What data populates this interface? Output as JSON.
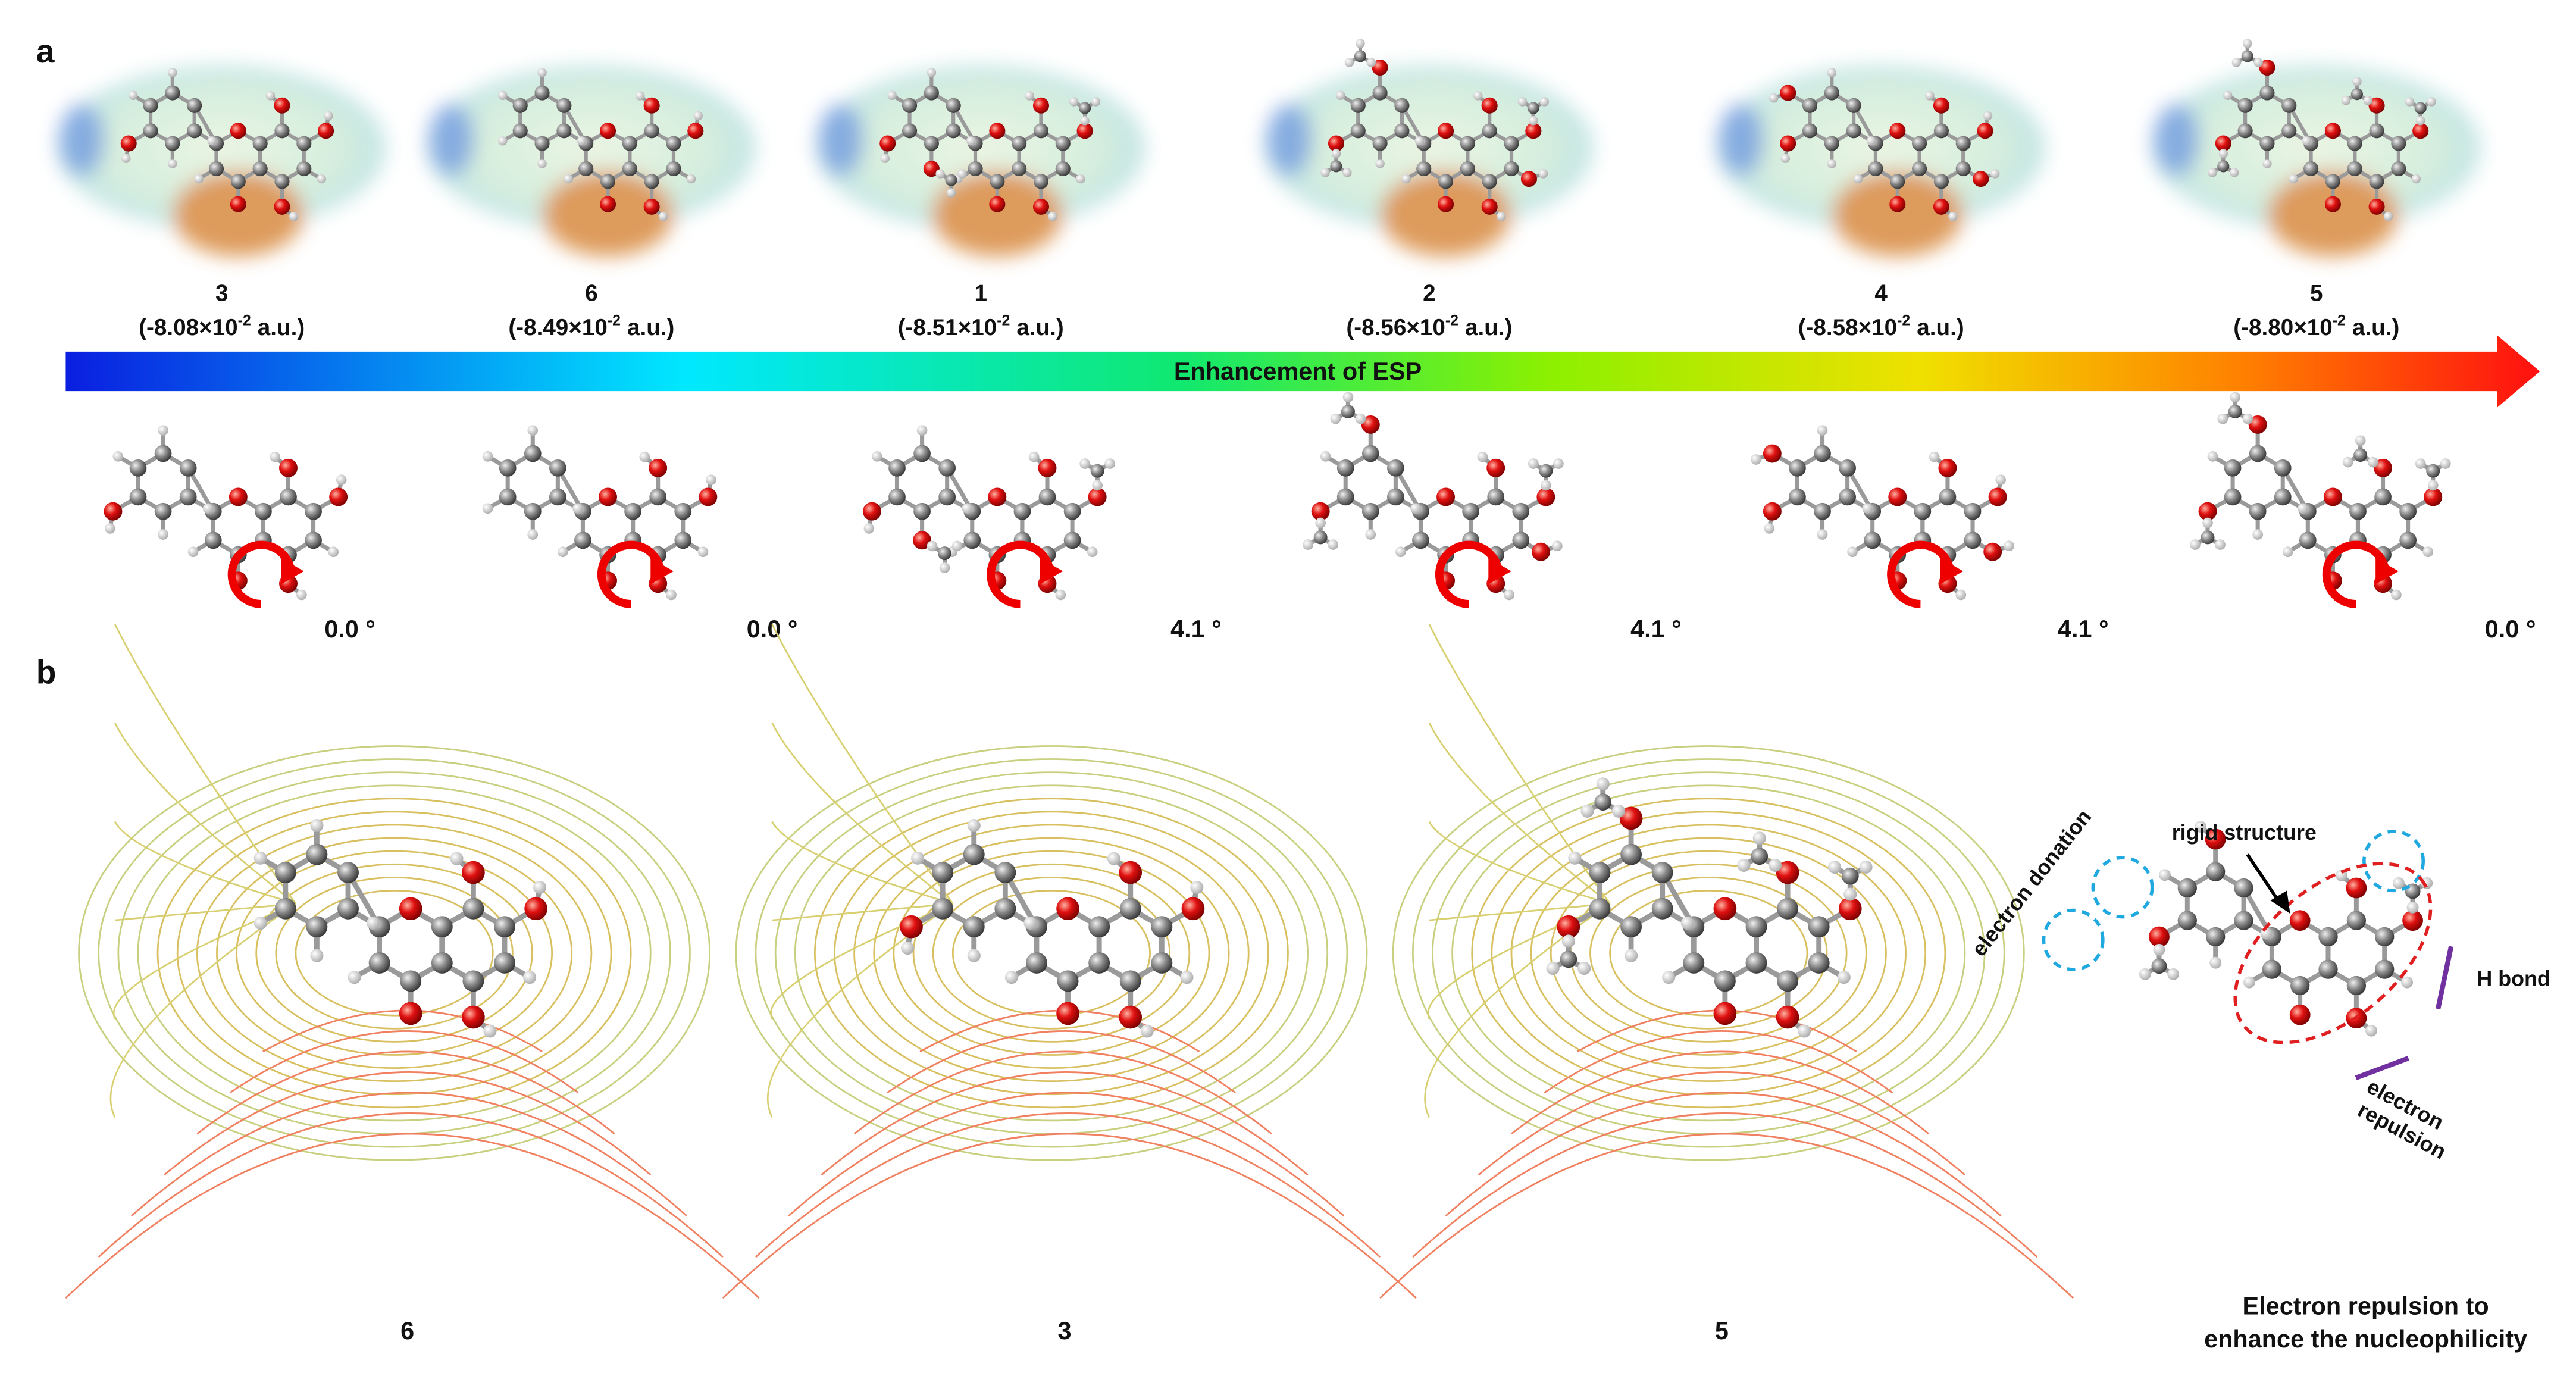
{
  "panel_a": {
    "label": "a",
    "compounds": [
      {
        "id": "3",
        "esp": {
          "text": "(-8.08×10",
          "exponent": "-2",
          "unit": "a.u.)"
        }
      },
      {
        "id": "6",
        "esp": {
          "text": "(-8.49×10",
          "exponent": "-2",
          "unit": "a.u.)"
        }
      },
      {
        "id": "1",
        "esp": {
          "text": "(-8.51×10",
          "exponent": "-2",
          "unit": "a.u.)"
        }
      },
      {
        "id": "2",
        "esp": {
          "text": "(-8.56×10",
          "exponent": "-2",
          "unit": "a.u.)"
        }
      },
      {
        "id": "4",
        "esp": {
          "text": "(-8.58×10",
          "exponent": "-2",
          "unit": "a.u.)"
        }
      },
      {
        "id": "5",
        "esp": {
          "text": "(-8.80×10",
          "exponent": "-2",
          "unit": "a.u.)"
        }
      }
    ],
    "arrow_label": "Enhancement of ESP",
    "angles": [
      "0.0 °",
      "0.0 °",
      "4.1 °",
      "4.1 °",
      "4.1 °",
      "0.0 °"
    ]
  },
  "panel_b": {
    "label": "b",
    "plots": [
      "6",
      "3",
      "5"
    ],
    "annotations": {
      "electron_donation": "electron donation",
      "rigid_structure": "rigid structure",
      "h_bond": "H bond",
      "electron_repulsion": [
        "electron",
        "repulsion"
      ]
    },
    "caption": [
      "Electron repulsion to",
      "enhance the nucleophilicity"
    ]
  }
}
